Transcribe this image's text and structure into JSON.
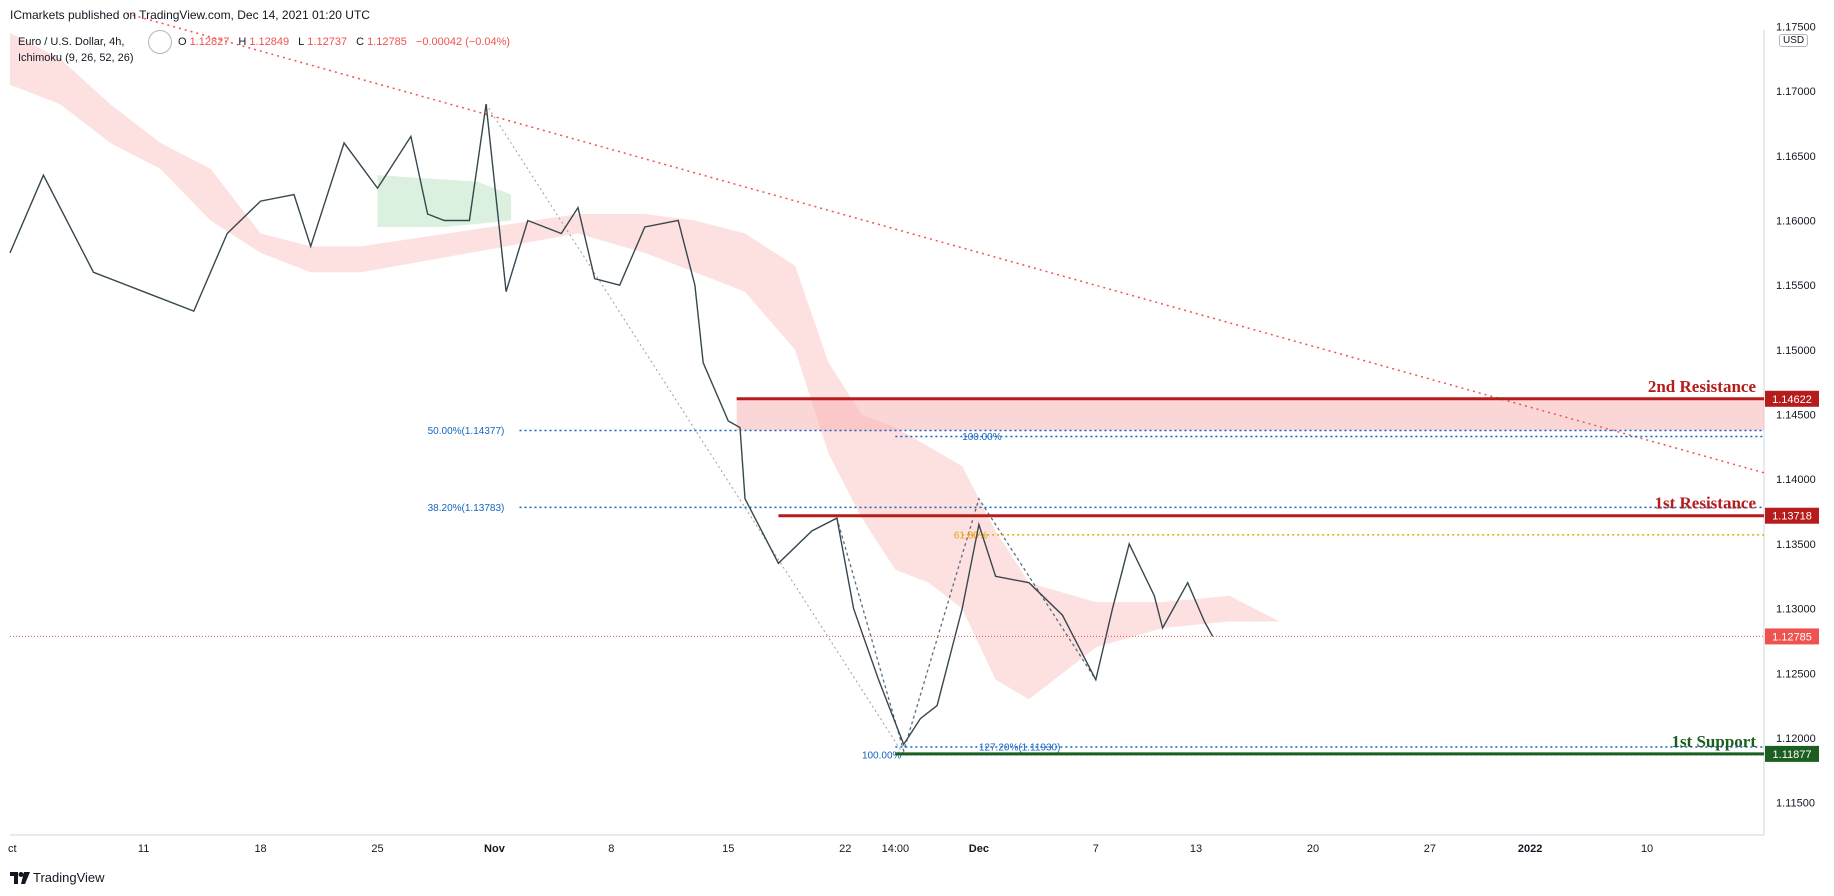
{
  "header": {
    "published": "ICmarkets published on TradingView.com, Dec 14, 2021 01:20 UTC",
    "symbol": "Euro / U.S. Dollar, 4h,",
    "ohlc": {
      "o_label": "O",
      "o": "1.12827",
      "h_label": "H",
      "h": "1.12849",
      "l_label": "L",
      "l": "1.12737",
      "c_label": "C",
      "c": "1.12785",
      "change": "−0.00042 (−0.04%)"
    },
    "indicator": "Ichimoku (9, 26, 52, 26)",
    "currency": "USD"
  },
  "footer": {
    "brand": "TradingView"
  },
  "colors": {
    "up": "#089981",
    "down": "#ef5350",
    "resistance": "#b71c1c",
    "support": "#1b5e20",
    "fib": "#1565c0",
    "fib_gold": "#e5a50a",
    "cloud_red": "#fcd5d5",
    "cloud_green": "#d8eedb"
  },
  "chart_data": {
    "type": "candlestick",
    "symbol": "EURUSD",
    "timeframe": "4h",
    "ylim": [
      1.1125,
      1.1755
    ],
    "y_ticks": [
      "1.17500",
      "1.17000",
      "1.16500",
      "1.16000",
      "1.15500",
      "1.15000",
      "1.14500",
      "1.14000",
      "1.13500",
      "1.13000",
      "1.12500",
      "1.12000",
      "1.11500"
    ],
    "x_ticks": [
      "ct",
      "11",
      "18",
      "25",
      "Nov",
      "8",
      "15",
      "22",
      "14:00",
      "Dec",
      "7",
      "13",
      "20",
      "27",
      "2022",
      "10"
    ],
    "x_tick_day": [
      3,
      11,
      18,
      25,
      32,
      39,
      46,
      53,
      56,
      61,
      68,
      74,
      81,
      88,
      94,
      101
    ],
    "days_span": [
      3,
      108
    ],
    "last_price": 1.12785,
    "last_price_label": "1.12785",
    "swing_points": [
      {
        "day": 3,
        "price": 1.1575
      },
      {
        "day": 5,
        "price": 1.1635
      },
      {
        "day": 8,
        "price": 1.156
      },
      {
        "day": 11,
        "price": 1.1545
      },
      {
        "day": 14,
        "price": 1.153
      },
      {
        "day": 16,
        "price": 1.159
      },
      {
        "day": 18,
        "price": 1.1615
      },
      {
        "day": 20,
        "price": 1.162
      },
      {
        "day": 21,
        "price": 1.158
      },
      {
        "day": 23,
        "price": 1.166
      },
      {
        "day": 25,
        "price": 1.1625
      },
      {
        "day": 27,
        "price": 1.1665
      },
      {
        "day": 28,
        "price": 1.1605
      },
      {
        "day": 29,
        "price": 1.16
      },
      {
        "day": 30.5,
        "price": 1.16
      },
      {
        "day": 31.5,
        "price": 1.169
      },
      {
        "day": 32.7,
        "price": 1.1545
      },
      {
        "day": 34,
        "price": 1.16
      },
      {
        "day": 36,
        "price": 1.159
      },
      {
        "day": 37,
        "price": 1.161
      },
      {
        "day": 38,
        "price": 1.1555
      },
      {
        "day": 39.5,
        "price": 1.155
      },
      {
        "day": 41,
        "price": 1.1595
      },
      {
        "day": 43,
        "price": 1.16
      },
      {
        "day": 44,
        "price": 1.155
      },
      {
        "day": 44.5,
        "price": 1.149
      },
      {
        "day": 46,
        "price": 1.1445
      },
      {
        "day": 46.7,
        "price": 1.144
      },
      {
        "day": 47,
        "price": 1.1385
      },
      {
        "day": 49,
        "price": 1.1335
      },
      {
        "day": 51,
        "price": 1.136
      },
      {
        "day": 52.5,
        "price": 1.137
      },
      {
        "day": 53.5,
        "price": 1.13
      },
      {
        "day": 55,
        "price": 1.1245
      },
      {
        "day": 56.5,
        "price": 1.1195
      },
      {
        "day": 57.5,
        "price": 1.1215
      },
      {
        "day": 58.5,
        "price": 1.1225
      },
      {
        "day": 60,
        "price": 1.13
      },
      {
        "day": 61,
        "price": 1.1365
      },
      {
        "day": 62,
        "price": 1.1325
      },
      {
        "day": 64,
        "price": 1.132
      },
      {
        "day": 66,
        "price": 1.1295
      },
      {
        "day": 68,
        "price": 1.1245
      },
      {
        "day": 69,
        "price": 1.13
      },
      {
        "day": 70,
        "price": 1.135
      },
      {
        "day": 71.5,
        "price": 1.131
      },
      {
        "day": 72,
        "price": 1.1285
      },
      {
        "day": 73.5,
        "price": 1.132
      },
      {
        "day": 74.5,
        "price": 1.129
      },
      {
        "day": 75,
        "price": 1.12785
      }
    ],
    "cloud_red_upper": [
      {
        "day": 3,
        "price": 1.1745
      },
      {
        "day": 6,
        "price": 1.1725
      },
      {
        "day": 9,
        "price": 1.169
      },
      {
        "day": 12,
        "price": 1.166
      },
      {
        "day": 15,
        "price": 1.164
      },
      {
        "day": 18,
        "price": 1.159
      },
      {
        "day": 21,
        "price": 1.158
      },
      {
        "day": 24,
        "price": 1.158
      },
      {
        "day": 37,
        "price": 1.1605
      },
      {
        "day": 41,
        "price": 1.1605
      },
      {
        "day": 44,
        "price": 1.16
      },
      {
        "day": 47,
        "price": 1.159
      },
      {
        "day": 50,
        "price": 1.1565
      },
      {
        "day": 52,
        "price": 1.149
      },
      {
        "day": 54,
        "price": 1.145
      },
      {
        "day": 56,
        "price": 1.144
      },
      {
        "day": 58,
        "price": 1.1425
      },
      {
        "day": 60,
        "price": 1.141
      },
      {
        "day": 62,
        "price": 1.136
      },
      {
        "day": 64,
        "price": 1.132
      },
      {
        "day": 68,
        "price": 1.1305
      },
      {
        "day": 72,
        "price": 1.1305
      },
      {
        "day": 76,
        "price": 1.131
      },
      {
        "day": 79,
        "price": 1.129
      }
    ],
    "cloud_red_lower": [
      {
        "day": 79,
        "price": 1.129
      },
      {
        "day": 76,
        "price": 1.129
      },
      {
        "day": 72,
        "price": 1.1285
      },
      {
        "day": 68,
        "price": 1.127
      },
      {
        "day": 64,
        "price": 1.123
      },
      {
        "day": 62,
        "price": 1.1245
      },
      {
        "day": 60,
        "price": 1.13
      },
      {
        "day": 58,
        "price": 1.132
      },
      {
        "day": 56,
        "price": 1.133
      },
      {
        "day": 54,
        "price": 1.137
      },
      {
        "day": 52,
        "price": 1.142
      },
      {
        "day": 50,
        "price": 1.15
      },
      {
        "day": 47,
        "price": 1.1545
      },
      {
        "day": 44,
        "price": 1.156
      },
      {
        "day": 41,
        "price": 1.1575
      },
      {
        "day": 37,
        "price": 1.159
      },
      {
        "day": 24,
        "price": 1.156
      },
      {
        "day": 21,
        "price": 1.156
      },
      {
        "day": 18,
        "price": 1.1575
      },
      {
        "day": 15,
        "price": 1.16
      },
      {
        "day": 12,
        "price": 1.164
      },
      {
        "day": 9,
        "price": 1.166
      },
      {
        "day": 6,
        "price": 1.169
      },
      {
        "day": 3,
        "price": 1.1705
      }
    ],
    "cloud_green": [
      {
        "day": 25,
        "price": 1.1635
      },
      {
        "day": 31,
        "price": 1.163
      },
      {
        "day": 33,
        "price": 1.162
      },
      {
        "day": 33,
        "price": 1.16
      },
      {
        "day": 29,
        "price": 1.1595
      },
      {
        "day": 25,
        "price": 1.1595
      }
    ],
    "levels": [
      {
        "name": "2nd Resistance",
        "value": 1.14622,
        "label": "1.14622",
        "type": "resistance",
        "from_day": 46.5
      },
      {
        "name": "1st Resistance",
        "value": 1.13718,
        "label": "1.13718",
        "type": "resistance",
        "from_day": 49
      },
      {
        "name": "1st Support",
        "value": 1.11877,
        "label": "1.11877",
        "type": "support",
        "from_day": 56
      }
    ],
    "resistance_zone": {
      "from_day": 46.5,
      "top": 1.14622,
      "bottom": 1.14377
    },
    "fib_lines": [
      {
        "label": "50.00%(1.14377)",
        "value": 1.14377,
        "from_day": 33.5,
        "text_day": 28,
        "color": "fib"
      },
      {
        "label": "38.20%(1.13783)",
        "value": 1.13783,
        "from_day": 33.5,
        "text_day": 28,
        "color": "fib"
      },
      {
        "label": "100.00%",
        "value": 1.1433,
        "from_day": 56,
        "text_day": 60,
        "color": "fib"
      },
      {
        "label": "61.80%",
        "value": 1.1357,
        "from_day": 60,
        "text_day": 59.5,
        "color": "fib_gold"
      },
      {
        "label": "127.20%(1.11930)",
        "value": 1.1193,
        "from_day": 56,
        "text_day": 61,
        "color": "fib"
      },
      {
        "label": "100.00%",
        "value": 1.1187,
        "from_day": 56,
        "text_day": 54,
        "color": "fib"
      }
    ],
    "trendline": [
      {
        "day": 10,
        "price": 1.176
      },
      {
        "day": 108,
        "price": 1.1405
      }
    ],
    "fib_swing": [
      {
        "day": 31.5,
        "price": 1.169
      },
      {
        "day": 56.5,
        "price": 1.1187
      }
    ],
    "zigzag": [
      {
        "day": 52.5,
        "price": 1.137
      },
      {
        "day": 56.5,
        "price": 1.119
      },
      {
        "day": 61,
        "price": 1.1385
      },
      {
        "day": 68,
        "price": 1.1245
      }
    ]
  }
}
